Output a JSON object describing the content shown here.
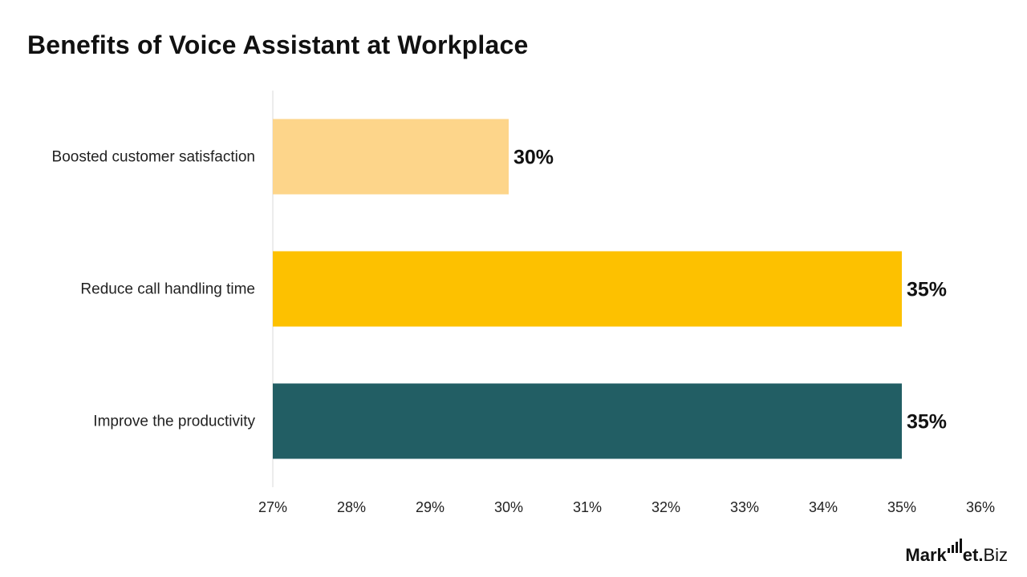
{
  "chart_data": {
    "type": "bar",
    "orientation": "horizontal",
    "title": "Benefits of Voice Assistant at Workplace",
    "categories": [
      "Boosted customer satisfaction",
      "Reduce call handling time",
      "Improve the productivity"
    ],
    "values": [
      30,
      35,
      35
    ],
    "data_labels": [
      "30%",
      "35%",
      "35%"
    ],
    "colors": [
      "#FDD58A",
      "#FDC100",
      "#225E64"
    ],
    "xlim": [
      27,
      36
    ],
    "ticks": [
      27,
      28,
      29,
      30,
      31,
      32,
      33,
      34,
      35,
      36
    ],
    "tick_labels": [
      "27%",
      "28%",
      "29%",
      "30%",
      "31%",
      "32%",
      "33%",
      "34%",
      "35%",
      "36%"
    ],
    "xlabel": "",
    "ylabel": "",
    "grid": false,
    "legend": "none"
  },
  "brand": {
    "logo_text_1": "Mark",
    "logo_text_2": "et",
    "logo_dot": ".",
    "logo_text_3": "Biz"
  }
}
